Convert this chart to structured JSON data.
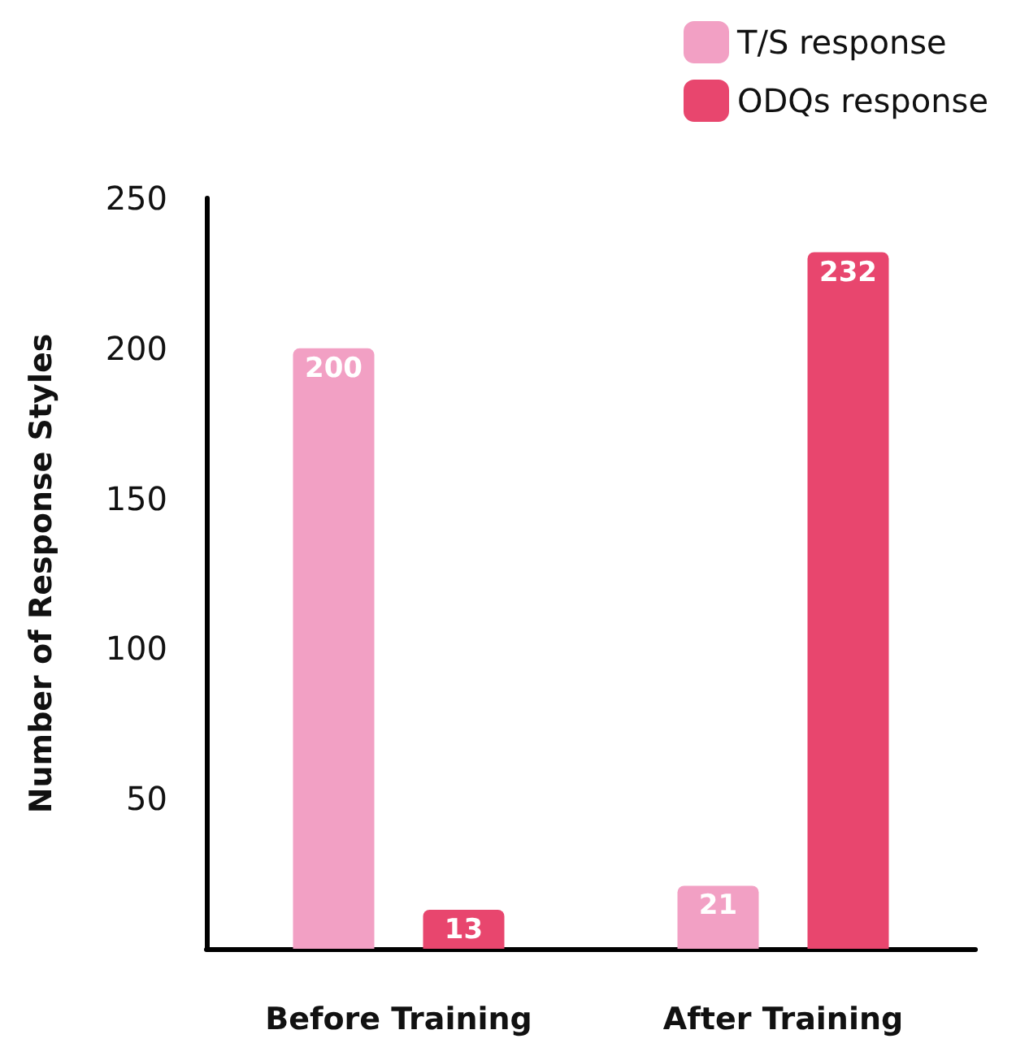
{
  "chart_data": {
    "type": "bar",
    "ylabel": "Number of Response Styles",
    "categories": [
      "Before Training",
      "After Training"
    ],
    "series": [
      {
        "name": "T/S response",
        "color": "#f2a0c4",
        "values": [
          200,
          21
        ]
      },
      {
        "name": "ODQs response",
        "color": "#e8466e",
        "values": [
          13,
          232
        ]
      }
    ],
    "ylim": [
      0,
      250
    ],
    "yticks": [
      50,
      100,
      150,
      200,
      250
    ],
    "grid": false,
    "legend": "top right",
    "data_labels": true
  }
}
